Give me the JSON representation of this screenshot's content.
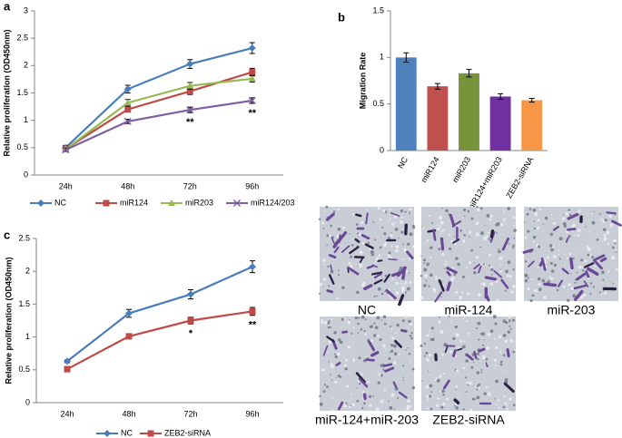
{
  "chart_data": [
    {
      "type": "line",
      "panel": "a",
      "ylabel": "Relative proliferation (OD450nm)",
      "categories": [
        "24h",
        "48h",
        "72h",
        "96h"
      ],
      "ylim": [
        0,
        3
      ],
      "yticks": [
        0,
        0.5,
        1,
        1.5,
        2,
        2.5,
        3
      ],
      "series": [
        {
          "name": "NC",
          "color": "#4a7ebb",
          "marker": "diamond",
          "values": [
            0.5,
            1.57,
            2.03,
            2.32
          ],
          "errors": [
            0.04,
            0.07,
            0.08,
            0.1
          ]
        },
        {
          "name": "miR124",
          "color": "#be4b48",
          "marker": "square",
          "values": [
            0.48,
            1.2,
            1.53,
            1.88
          ],
          "errors": [
            0.03,
            0.05,
            0.06,
            0.07
          ]
        },
        {
          "name": "miR203",
          "color": "#98b954",
          "marker": "triangle",
          "values": [
            0.47,
            1.32,
            1.63,
            1.76
          ],
          "errors": [
            0.03,
            0.06,
            0.06,
            0.06
          ]
        },
        {
          "name": "miR124/203",
          "color": "#7d60a0",
          "marker": "x",
          "values": [
            0.46,
            0.98,
            1.19,
            1.36
          ],
          "errors": [
            0.03,
            0.04,
            0.05,
            0.05
          ]
        }
      ],
      "annotations": [
        {
          "text": "**",
          "category": "72h"
        },
        {
          "text": "**",
          "category": "96h"
        }
      ]
    },
    {
      "type": "bar",
      "panel": "b",
      "ylabel": "Migration Rate",
      "categories": [
        "NC",
        "miR124",
        "miR203",
        "miR124+miR203",
        "ZEB2-siRNA"
      ],
      "values": [
        1.0,
        0.69,
        0.83,
        0.58,
        0.54
      ],
      "errors": [
        0.05,
        0.03,
        0.04,
        0.03,
        0.02
      ],
      "colors": [
        "#4f81bd",
        "#c0504d",
        "#77933c",
        "#7030a0",
        "#f79646"
      ],
      "ylim": [
        0,
        1.5
      ],
      "yticks": [
        0,
        0.5,
        1,
        1.5
      ]
    },
    {
      "type": "line",
      "panel": "c",
      "ylabel": "Relative proliferation (OD450nm)",
      "categories": [
        "24h",
        "48h",
        "72h",
        "96h"
      ],
      "ylim": [
        0,
        2.5
      ],
      "yticks": [
        0,
        0.5,
        1,
        1.5,
        2,
        2.5
      ],
      "series": [
        {
          "name": "NC",
          "color": "#4a7ebb",
          "marker": "diamond",
          "values": [
            0.63,
            1.36,
            1.65,
            2.07
          ],
          "errors": [
            0.02,
            0.06,
            0.07,
            0.09
          ]
        },
        {
          "name": "ZEB2-siRNA",
          "color": "#be4b48",
          "marker": "square",
          "values": [
            0.51,
            1.01,
            1.25,
            1.39
          ],
          "errors": [
            0.02,
            0.04,
            0.05,
            0.06
          ]
        }
      ],
      "annotations": [
        {
          "text": "*",
          "category": "72h"
        },
        {
          "text": "**",
          "category": "96h"
        }
      ]
    }
  ],
  "micrographs": [
    {
      "caption": "NC"
    },
    {
      "caption": "miR-124"
    },
    {
      "caption": "miR-203"
    },
    {
      "caption": "miR-124+miR-203"
    },
    {
      "caption": "ZEB2-siRNA"
    }
  ]
}
